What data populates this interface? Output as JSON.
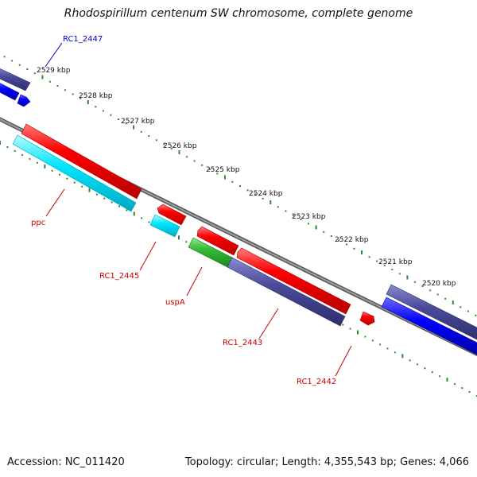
{
  "title": "Rhodospirillum centenum SW chromosome, complete genome",
  "footer": {
    "accession": "Accession: NC_011420",
    "topology": "Topology: circular; Length: 4,355,543 bp; Genes: 4,066"
  },
  "colors": {
    "backbone": "#7f7f7f",
    "tick": "#2e8b2e",
    "gene_red": "#ff0000",
    "gene_blue": "#0000ff",
    "gene_cyan": "#00e5ff",
    "gene_purple": "#4b4b9a",
    "gene_green": "#33bb33",
    "label_red": "#cc0000",
    "label_blue": "#0000cc"
  },
  "kbp_labels": [
    "2529 kbp",
    "2528 kbp",
    "2527 kbp",
    "2526 kbp",
    "2525 kbp",
    "2524 kbp",
    "2523 kbp",
    "2522 kbp",
    "2521 kbp",
    "2520 kbp"
  ],
  "gene_labels": [
    {
      "text": "RC1_2447",
      "color": "blue"
    },
    {
      "text": "ppc",
      "color": "red"
    },
    {
      "text": "RC1_2445",
      "color": "red"
    },
    {
      "text": "uspA",
      "color": "red"
    },
    {
      "text": "RC1_2443",
      "color": "red"
    },
    {
      "text": "RC1_2442",
      "color": "red"
    }
  ]
}
